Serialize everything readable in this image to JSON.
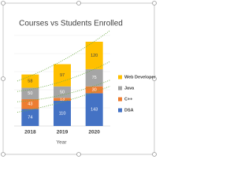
{
  "chart_data": {
    "type": "stacked-bar",
    "title": "Courses vs Students Enrolled",
    "x_label": "Year",
    "categories": [
      "2018",
      "2019",
      "2020"
    ],
    "series": [
      {
        "name": "DSA",
        "color": "#4472c4",
        "values": [
          74,
          110,
          143
        ]
      },
      {
        "name": "C++",
        "color": "#ed7d31",
        "values": [
          43,
          13,
          30
        ]
      },
      {
        "name": "Java",
        "color": "#a5a5a5",
        "values": [
          50,
          50,
          75
        ]
      },
      {
        "name": "Web Developer",
        "color": "#ffc000",
        "values": [
          58,
          97,
          120
        ]
      }
    ],
    "trendline_color": "#70ad47",
    "legend": "right"
  }
}
